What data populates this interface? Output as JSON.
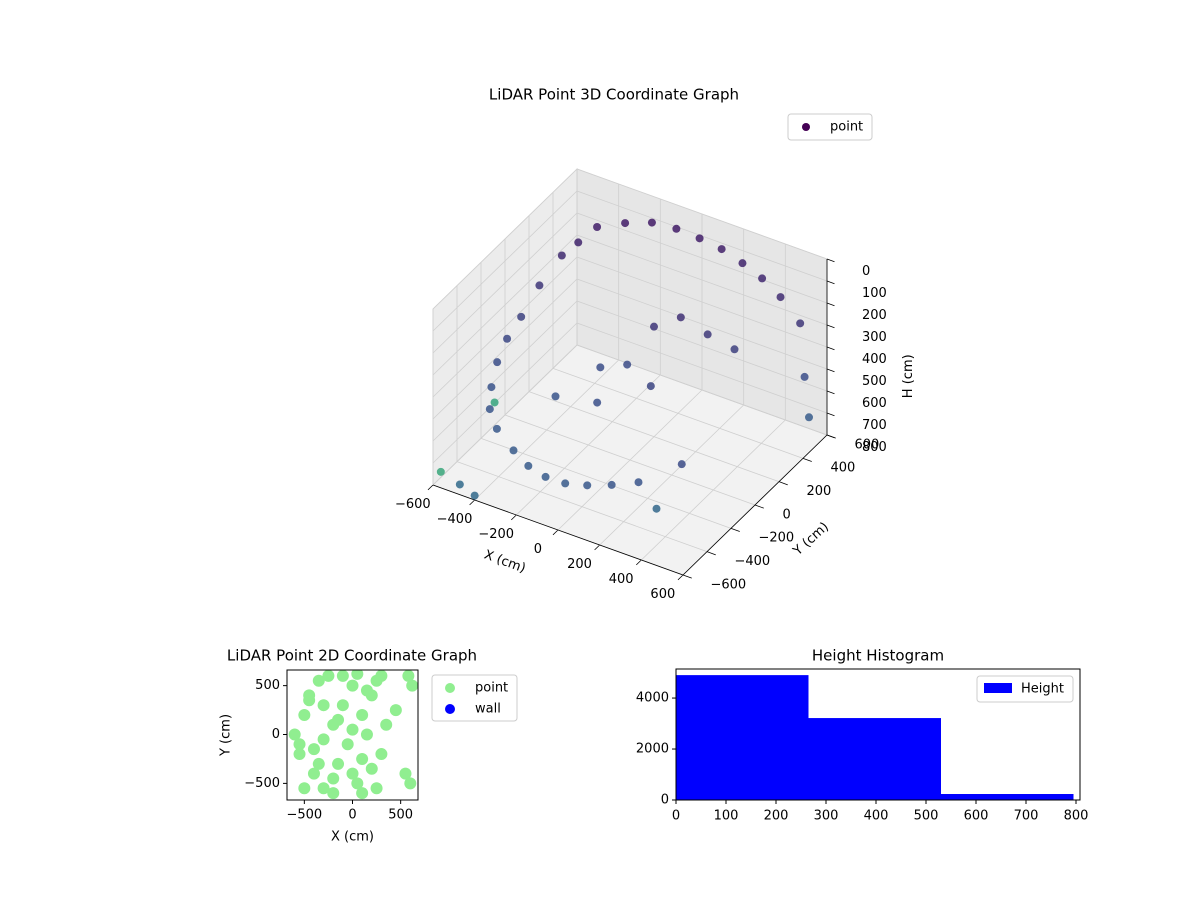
{
  "chart_data": [
    {
      "type": "scatter3d",
      "title": "LiDAR Point 3D Coordinate Graph",
      "xlabel": "X (cm)",
      "ylabel": "Y (cm)",
      "zlabel": "H (cm)",
      "colormap": "viridis",
      "xlim": [
        -600,
        600
      ],
      "ylim": [
        -600,
        600
      ],
      "zlim": [
        800,
        0
      ],
      "xticks": [
        {
          "value": -600,
          "label": "−600"
        },
        {
          "value": -400,
          "label": "−400"
        },
        {
          "value": -200,
          "label": "−200"
        },
        0,
        200,
        400,
        600
      ],
      "yticks": [
        {
          "value": -600,
          "label": "−600"
        },
        {
          "value": -400,
          "label": "−400"
        },
        {
          "value": -200,
          "label": "−200"
        },
        0,
        200,
        400,
        600
      ],
      "zticks": [
        0,
        100,
        200,
        300,
        400,
        500,
        600,
        700,
        800
      ],
      "legend": "upper right",
      "series": [
        {
          "name": "point",
          "color": "#440154",
          "x": [
            -500,
            -450,
            -400,
            -300,
            -200,
            -100,
            0,
            100,
            200,
            300,
            400,
            -550,
            -580,
            -590,
            -580,
            -550,
            -500,
            -420,
            -300,
            -200,
            -100,
            0,
            100,
            200,
            300,
            -200,
            -100,
            0,
            100,
            200,
            300,
            -300,
            -100,
            100,
            500,
            550,
            600,
            -620,
            -500,
            -400,
            300,
            -650,
            450
          ],
          "y": [
            300,
            350,
            420,
            480,
            530,
            560,
            580,
            590,
            590,
            580,
            560,
            200,
            100,
            0,
            -100,
            -200,
            -300,
            -380,
            -450,
            -500,
            -530,
            -540,
            -530,
            -500,
            -450,
            100,
            150,
            200,
            250,
            300,
            350,
            -100,
            -100,
            0,
            550,
            500,
            450,
            -500,
            -550,
            -600,
            -300,
            0,
            -350
          ],
          "z": [
            200,
            150,
            100,
            80,
            70,
            80,
            100,
            120,
            150,
            180,
            220,
            300,
            400,
            450,
            500,
            550,
            580,
            600,
            620,
            630,
            630,
            620,
            600,
            580,
            560,
            500,
            480,
            300,
            250,
            320,
            380,
            560,
            520,
            430,
            300,
            500,
            640,
            800,
            790,
            780,
            760,
            760,
            480
          ]
        }
      ]
    },
    {
      "type": "scatter",
      "title": "LiDAR Point 2D Coordinate Graph",
      "xlabel": "X (cm)",
      "ylabel": "Y (cm)",
      "xlim": [
        -680,
        680
      ],
      "ylim": [
        -670,
        660
      ],
      "xticks": [
        {
          "value": -500,
          "label": "−500"
        },
        0,
        500
      ],
      "yticks": [
        {
          "value": -500,
          "label": "−500"
        },
        0,
        500
      ],
      "legend": "outside right",
      "series": [
        {
          "name": "point",
          "color": "#90ee90",
          "x": [
            -600,
            -550,
            -500,
            -450,
            -400,
            -350,
            -300,
            -250,
            -200,
            -150,
            -100,
            -50,
            0,
            50,
            100,
            150,
            200,
            250,
            300,
            350,
            -500,
            -400,
            -300,
            -200,
            -100,
            0,
            100,
            200,
            -450,
            -300,
            -150,
            0,
            150,
            300,
            550,
            600,
            620,
            580,
            -550,
            50,
            250,
            -350,
            450,
            -200,
            100
          ],
          "y": [
            0,
            -200,
            200,
            400,
            -400,
            550,
            -550,
            600,
            100,
            -300,
            300,
            -100,
            500,
            -500,
            200,
            0,
            -350,
            550,
            -200,
            100,
            -550,
            -150,
            300,
            -450,
            600,
            50,
            -250,
            400,
            350,
            -50,
            150,
            -400,
            450,
            600,
            -400,
            -500,
            500,
            600,
            -100,
            620,
            -550,
            -300,
            250,
            -600,
            -600
          ]
        },
        {
          "name": "wall",
          "color": "#0000ff",
          "x": [],
          "y": []
        }
      ]
    },
    {
      "type": "histogram",
      "title": "Height Histogram",
      "bins": [
        0,
        265,
        530,
        795
      ],
      "xlim": [
        0,
        808
      ],
      "ylim": [
        0,
        5140
      ],
      "xticks": [
        0,
        100,
        200,
        300,
        400,
        500,
        600,
        700,
        800
      ],
      "yticks": [
        0,
        2000,
        4000
      ],
      "legend": "upper right",
      "series": [
        {
          "name": "Height",
          "color": "#0000ff",
          "values": [
            4900,
            3215,
            235
          ]
        }
      ]
    }
  ]
}
